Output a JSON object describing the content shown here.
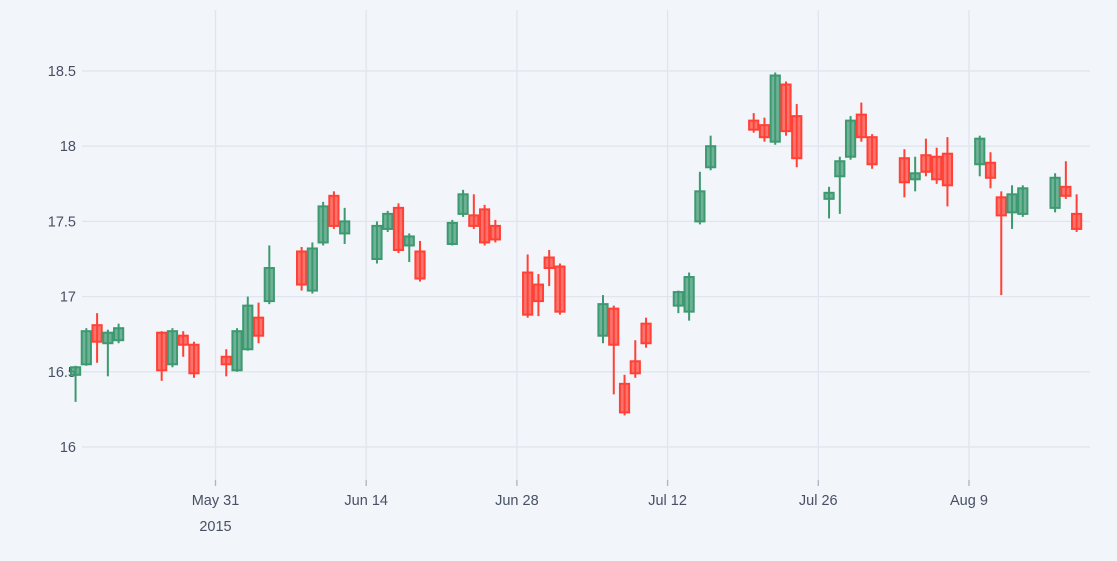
{
  "chart_data": {
    "type": "candlestick",
    "title": "",
    "xlabel": "",
    "ylabel": "",
    "grid": true,
    "legend": "none",
    "y_ticks": [
      {
        "value": 16,
        "label": "16"
      },
      {
        "value": 16.5,
        "label": "16.5"
      },
      {
        "value": 17,
        "label": "17"
      },
      {
        "value": 17.5,
        "label": "17.5"
      },
      {
        "value": 18,
        "label": "18"
      },
      {
        "value": 18.5,
        "label": "18.5"
      }
    ],
    "x_ticks": [
      {
        "date": "2015-05-31",
        "label": "May 31",
        "sublabel": "2015"
      },
      {
        "date": "2015-06-14",
        "label": "Jun 14",
        "sublabel": ""
      },
      {
        "date": "2015-06-28",
        "label": "Jun 28",
        "sublabel": ""
      },
      {
        "date": "2015-07-12",
        "label": "Jul 12",
        "sublabel": ""
      },
      {
        "date": "2015-07-26",
        "label": "Jul 26",
        "sublabel": ""
      },
      {
        "date": "2015-08-09",
        "label": "Aug 9",
        "sublabel": ""
      }
    ],
    "y_range": [
      15.78,
      18.91
    ],
    "colors": {
      "background": "#f2f5f9",
      "grid": "#e0e5ef",
      "tick_mark": "#aab4c2",
      "tick_text": "#475064",
      "increasing": "#3d9970",
      "decreasing": "#ff4136"
    },
    "candles": [
      {
        "d": "2015-05-18",
        "o": 16.48,
        "h": 16.54,
        "l": 16.3,
        "c": 16.53
      },
      {
        "d": "2015-05-19",
        "o": 16.55,
        "h": 16.79,
        "l": 16.54,
        "c": 16.77
      },
      {
        "d": "2015-05-20",
        "o": 16.81,
        "h": 16.89,
        "l": 16.56,
        "c": 16.7
      },
      {
        "d": "2015-05-21",
        "o": 16.69,
        "h": 16.78,
        "l": 16.47,
        "c": 16.76
      },
      {
        "d": "2015-05-22",
        "o": 16.71,
        "h": 16.82,
        "l": 16.69,
        "c": 16.79
      },
      {
        "d": "2015-05-26",
        "o": 16.76,
        "h": 16.77,
        "l": 16.44,
        "c": 16.51
      },
      {
        "d": "2015-05-27",
        "o": 16.55,
        "h": 16.79,
        "l": 16.53,
        "c": 16.77
      },
      {
        "d": "2015-05-28",
        "o": 16.74,
        "h": 16.77,
        "l": 16.6,
        "c": 16.68
      },
      {
        "d": "2015-05-29",
        "o": 16.68,
        "h": 16.7,
        "l": 16.46,
        "c": 16.49
      },
      {
        "d": "2015-06-01",
        "o": 16.6,
        "h": 16.65,
        "l": 16.47,
        "c": 16.55
      },
      {
        "d": "2015-06-02",
        "o": 16.51,
        "h": 16.79,
        "l": 16.5,
        "c": 16.77
      },
      {
        "d": "2015-06-03",
        "o": 16.65,
        "h": 17.0,
        "l": 16.64,
        "c": 16.94
      },
      {
        "d": "2015-06-04",
        "o": 16.86,
        "h": 16.96,
        "l": 16.69,
        "c": 16.74
      },
      {
        "d": "2015-06-05",
        "o": 16.97,
        "h": 17.34,
        "l": 16.95,
        "c": 17.19
      },
      {
        "d": "2015-06-08",
        "o": 17.3,
        "h": 17.33,
        "l": 17.04,
        "c": 17.08
      },
      {
        "d": "2015-06-09",
        "o": 17.04,
        "h": 17.36,
        "l": 17.02,
        "c": 17.32
      },
      {
        "d": "2015-06-10",
        "o": 17.36,
        "h": 17.63,
        "l": 17.34,
        "c": 17.6
      },
      {
        "d": "2015-06-11",
        "o": 17.67,
        "h": 17.7,
        "l": 17.45,
        "c": 17.47
      },
      {
        "d": "2015-06-12",
        "o": 17.42,
        "h": 17.59,
        "l": 17.35,
        "c": 17.5
      },
      {
        "d": "2015-06-15",
        "o": 17.25,
        "h": 17.5,
        "l": 17.22,
        "c": 17.47
      },
      {
        "d": "2015-06-16",
        "o": 17.45,
        "h": 17.57,
        "l": 17.43,
        "c": 17.55
      },
      {
        "d": "2015-06-17",
        "o": 17.59,
        "h": 17.62,
        "l": 17.29,
        "c": 17.31
      },
      {
        "d": "2015-06-18",
        "o": 17.34,
        "h": 17.42,
        "l": 17.23,
        "c": 17.4
      },
      {
        "d": "2015-06-19",
        "o": 17.3,
        "h": 17.37,
        "l": 17.1,
        "c": 17.12
      },
      {
        "d": "2015-06-22",
        "o": 17.35,
        "h": 17.51,
        "l": 17.34,
        "c": 17.49
      },
      {
        "d": "2015-06-23",
        "o": 17.55,
        "h": 17.71,
        "l": 17.53,
        "c": 17.68
      },
      {
        "d": "2015-06-24",
        "o": 17.54,
        "h": 17.68,
        "l": 17.45,
        "c": 17.47
      },
      {
        "d": "2015-06-25",
        "o": 17.58,
        "h": 17.61,
        "l": 17.34,
        "c": 17.36
      },
      {
        "d": "2015-06-26",
        "o": 17.47,
        "h": 17.51,
        "l": 17.36,
        "c": 17.38
      },
      {
        "d": "2015-06-29",
        "o": 17.16,
        "h": 17.28,
        "l": 16.86,
        "c": 16.88
      },
      {
        "d": "2015-06-30",
        "o": 17.08,
        "h": 17.15,
        "l": 16.87,
        "c": 16.97
      },
      {
        "d": "2015-07-01",
        "o": 17.26,
        "h": 17.31,
        "l": 17.07,
        "c": 17.19
      },
      {
        "d": "2015-07-02",
        "o": 17.2,
        "h": 17.22,
        "l": 16.88,
        "c": 16.9
      },
      {
        "d": "2015-07-06",
        "o": 16.74,
        "h": 17.01,
        "l": 16.69,
        "c": 16.95
      },
      {
        "d": "2015-07-07",
        "o": 16.92,
        "h": 16.94,
        "l": 16.35,
        "c": 16.68
      },
      {
        "d": "2015-07-08",
        "o": 16.42,
        "h": 16.48,
        "l": 16.21,
        "c": 16.23
      },
      {
        "d": "2015-07-09",
        "o": 16.57,
        "h": 16.71,
        "l": 16.46,
        "c": 16.49
      },
      {
        "d": "2015-07-10",
        "o": 16.82,
        "h": 16.86,
        "l": 16.66,
        "c": 16.69
      },
      {
        "d": "2015-07-13",
        "o": 16.94,
        "h": 17.04,
        "l": 16.89,
        "c": 17.03
      },
      {
        "d": "2015-07-14",
        "o": 16.9,
        "h": 17.16,
        "l": 16.84,
        "c": 17.13
      },
      {
        "d": "2015-07-15",
        "o": 17.5,
        "h": 17.83,
        "l": 17.48,
        "c": 17.7
      },
      {
        "d": "2015-07-16",
        "o": 17.86,
        "h": 18.07,
        "l": 17.84,
        "c": 18.0
      },
      {
        "d": "2015-07-20",
        "o": 18.17,
        "h": 18.22,
        "l": 18.09,
        "c": 18.11
      },
      {
        "d": "2015-07-21",
        "o": 18.14,
        "h": 18.19,
        "l": 18.03,
        "c": 18.06
      },
      {
        "d": "2015-07-22",
        "o": 18.03,
        "h": 18.49,
        "l": 18.01,
        "c": 18.47
      },
      {
        "d": "2015-07-23",
        "o": 18.41,
        "h": 18.43,
        "l": 18.07,
        "c": 18.1
      },
      {
        "d": "2015-07-24",
        "o": 18.2,
        "h": 18.28,
        "l": 17.86,
        "c": 17.92
      },
      {
        "d": "2015-07-27",
        "o": 17.65,
        "h": 17.73,
        "l": 17.52,
        "c": 17.69
      },
      {
        "d": "2015-07-28",
        "o": 17.8,
        "h": 17.93,
        "l": 17.55,
        "c": 17.9
      },
      {
        "d": "2015-07-29",
        "o": 17.93,
        "h": 18.2,
        "l": 17.91,
        "c": 18.17
      },
      {
        "d": "2015-07-30",
        "o": 18.21,
        "h": 18.29,
        "l": 18.03,
        "c": 18.06
      },
      {
        "d": "2015-07-31",
        "o": 18.06,
        "h": 18.08,
        "l": 17.85,
        "c": 17.88
      },
      {
        "d": "2015-08-03",
        "o": 17.92,
        "h": 17.98,
        "l": 17.66,
        "c": 17.76
      },
      {
        "d": "2015-08-04",
        "o": 17.78,
        "h": 17.93,
        "l": 17.7,
        "c": 17.82
      },
      {
        "d": "2015-08-05",
        "o": 17.94,
        "h": 18.05,
        "l": 17.8,
        "c": 17.83
      },
      {
        "d": "2015-08-06",
        "o": 17.93,
        "h": 17.99,
        "l": 17.75,
        "c": 17.78
      },
      {
        "d": "2015-08-07",
        "o": 17.95,
        "h": 18.06,
        "l": 17.6,
        "c": 17.74
      },
      {
        "d": "2015-08-10",
        "o": 17.88,
        "h": 18.07,
        "l": 17.8,
        "c": 18.05
      },
      {
        "d": "2015-08-11",
        "o": 17.89,
        "h": 17.96,
        "l": 17.72,
        "c": 17.79
      },
      {
        "d": "2015-08-12",
        "o": 17.66,
        "h": 17.7,
        "l": 17.01,
        "c": 17.54
      },
      {
        "d": "2015-08-13",
        "o": 17.56,
        "h": 17.74,
        "l": 17.45,
        "c": 17.68
      },
      {
        "d": "2015-08-14",
        "o": 17.55,
        "h": 17.74,
        "l": 17.53,
        "c": 17.72
      },
      {
        "d": "2015-08-17",
        "o": 17.59,
        "h": 17.82,
        "l": 17.56,
        "c": 17.79
      },
      {
        "d": "2015-08-18",
        "o": 17.73,
        "h": 17.9,
        "l": 17.65,
        "c": 17.67
      },
      {
        "d": "2015-08-19",
        "o": 17.55,
        "h": 17.68,
        "l": 17.43,
        "c": 17.45
      }
    ]
  }
}
